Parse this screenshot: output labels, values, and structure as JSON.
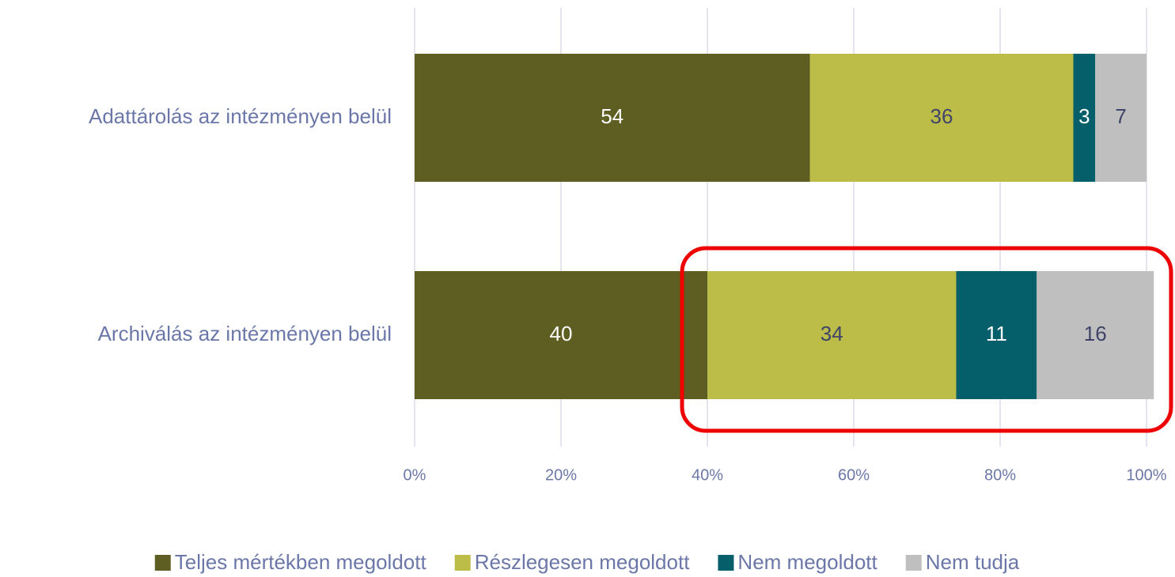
{
  "chart_data": {
    "type": "stacked_barh",
    "categories": [
      "Adattárolás az intézményen belül",
      "Archiválás az intézményen belül"
    ],
    "series": [
      {
        "name": "Teljes mértékben megoldott",
        "color": "#5e5e23",
        "label_color": "#ffffff",
        "values": [
          54,
          40
        ]
      },
      {
        "name": "Részlegesen megoldott",
        "color": "#bcbc48",
        "label_color": "#3f4468",
        "values": [
          36,
          34
        ]
      },
      {
        "name": "Nem megoldott",
        "color": "#055f6a",
        "label_color": "#ffffff",
        "values": [
          3,
          11
        ]
      },
      {
        "name": "Nem tudja",
        "color": "#bfbfbf",
        "label_color": "#3f4468",
        "values": [
          7,
          16
        ]
      }
    ],
    "xlim": [
      0,
      100
    ],
    "xticks": [
      {
        "value": 0,
        "label": "0%"
      },
      {
        "value": 20,
        "label": "20%"
      },
      {
        "value": 40,
        "label": "40%"
      },
      {
        "value": 60,
        "label": "60%"
      },
      {
        "value": 80,
        "label": "80%"
      },
      {
        "value": 100,
        "label": "100%"
      }
    ],
    "grid": true,
    "legend": "bottom"
  }
}
